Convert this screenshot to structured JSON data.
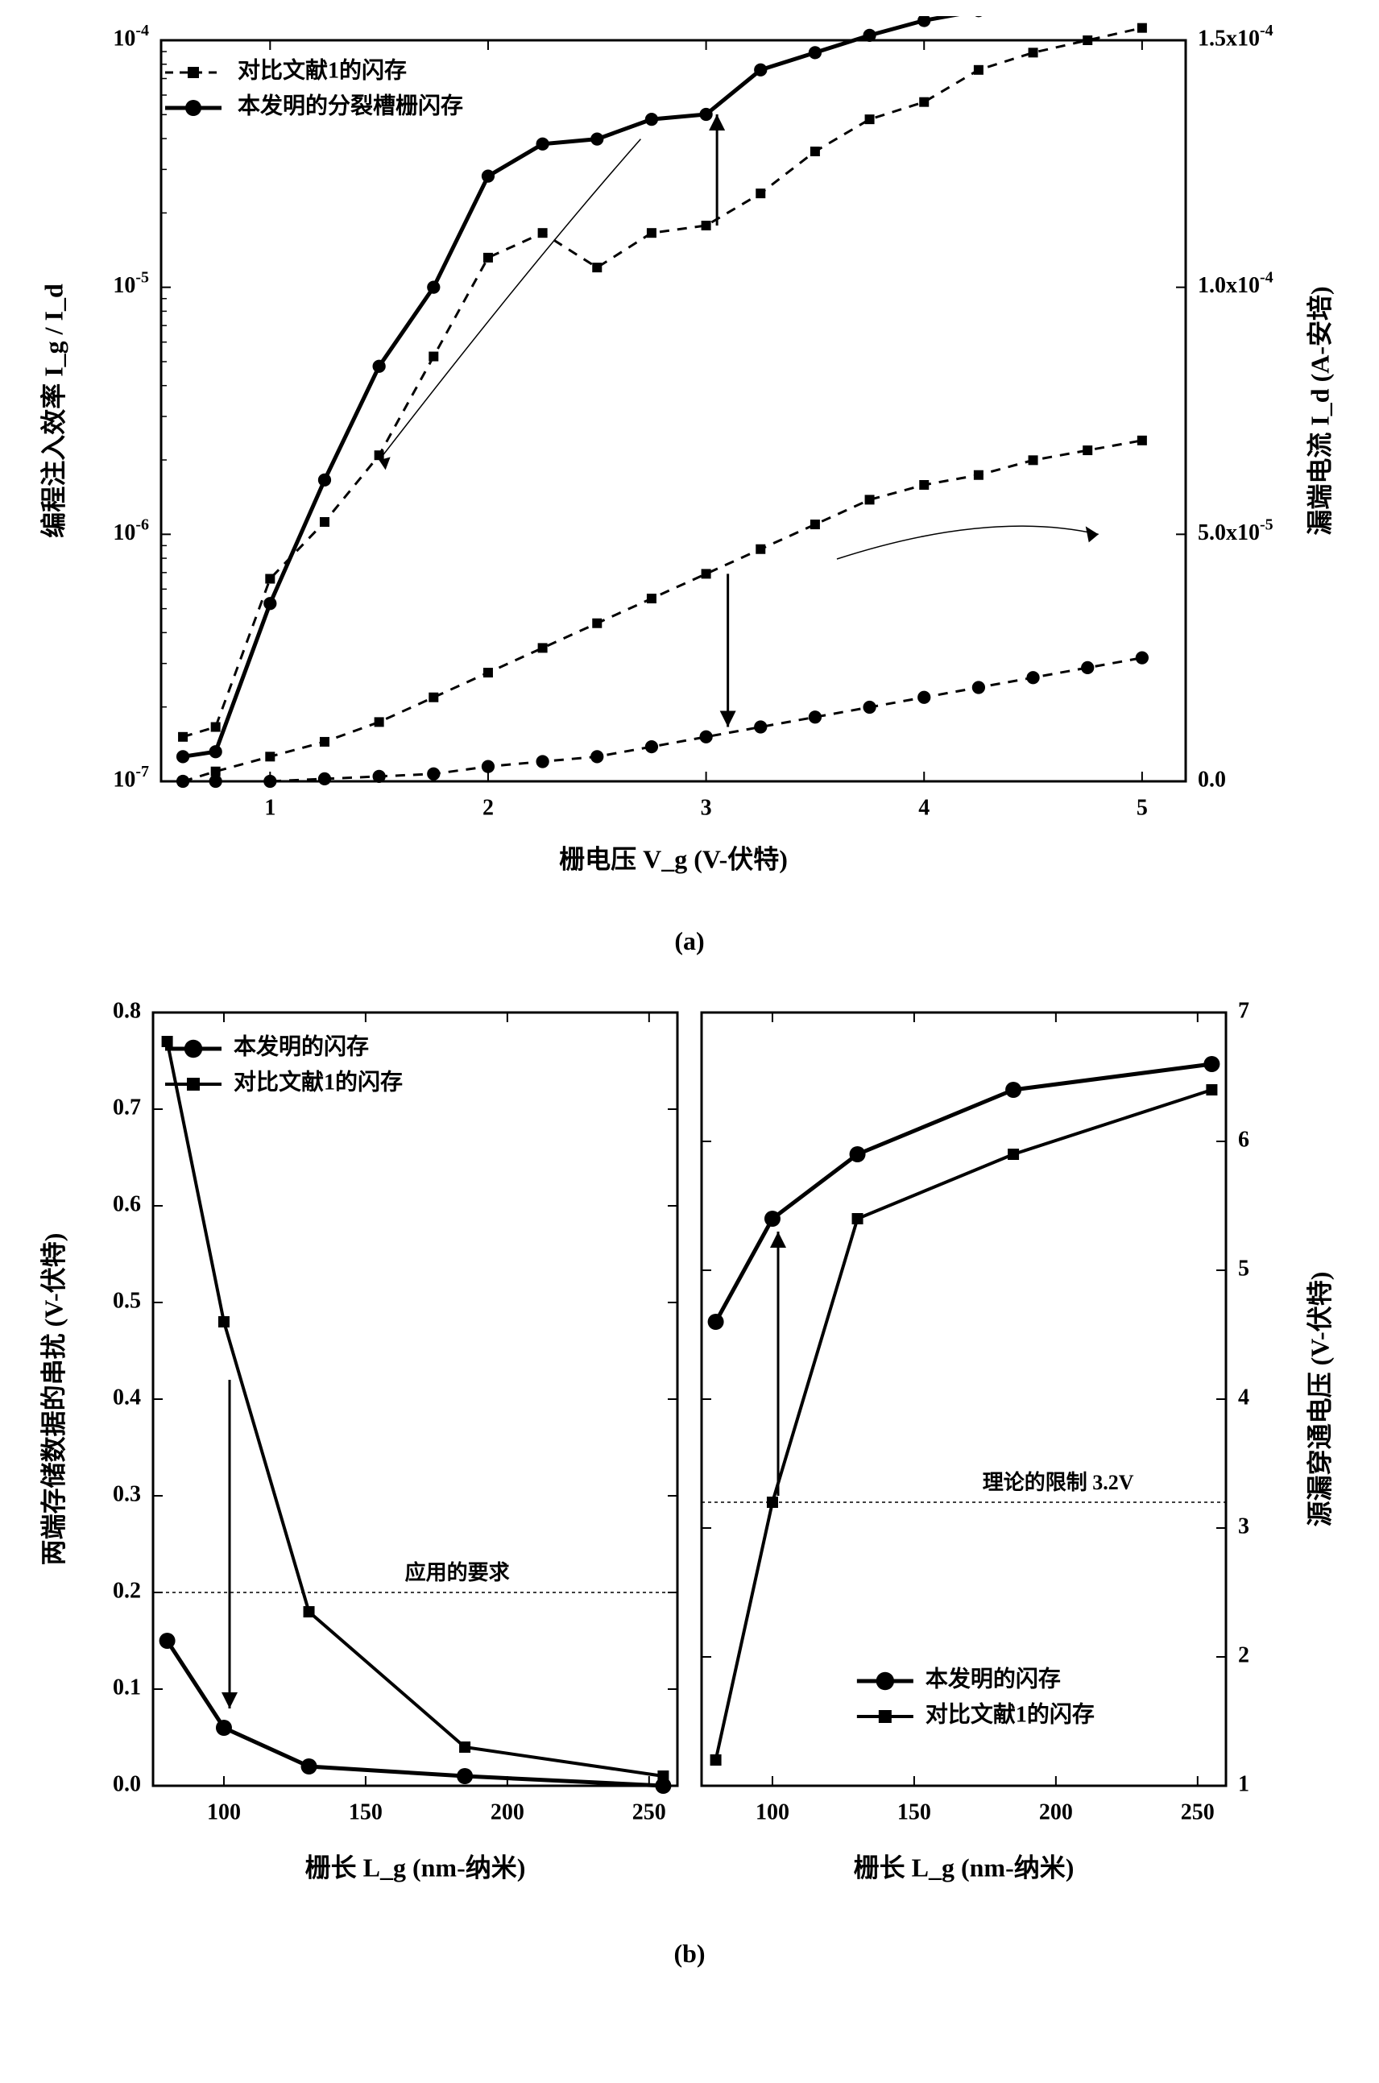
{
  "chart_a": {
    "type": "line-dual-axis",
    "xlabel": "栅电压  V_g  (V-伏特)",
    "ylabel_left": "编程注入效率  I_g / I_d",
    "ylabel_right": "漏端电流  I_d (A-安培)",
    "xlim": [
      0.5,
      5.2
    ],
    "xticks": [
      1,
      2,
      3,
      4,
      5
    ],
    "left_yscale": "log",
    "left_ylim_exp": [
      -7,
      -4
    ],
    "left_yticks_exp": [
      -7,
      -6,
      -5,
      -4
    ],
    "right_ylim": [
      0,
      0.00015
    ],
    "right_yticks": [
      0.0,
      5e-05,
      0.0001,
      0.00015
    ],
    "right_ytick_labels": [
      "0.0",
      "5.0x10^-5",
      "1.0x10^-4",
      "1.5x10^-4"
    ],
    "legend": {
      "square_label": "对比文献1的闪存",
      "circle_label": "本发明的分裂槽栅闪存"
    },
    "series_left_square": {
      "marker": "square",
      "dash": true,
      "size": 12,
      "line_width": 3,
      "x": [
        0.6,
        0.75,
        1.0,
        1.25,
        1.5,
        1.75,
        2.0,
        2.25,
        2.5,
        2.75,
        3.0,
        3.25,
        3.5,
        3.75,
        4.0,
        4.25,
        4.5,
        4.75,
        5.0
      ],
      "yexp": [
        -6.82,
        -6.78,
        -6.18,
        -5.95,
        -5.68,
        -5.28,
        -4.88,
        -4.78,
        -4.92,
        -4.78,
        -4.75,
        -4.62,
        -4.45,
        -4.32,
        -4.25,
        -4.12,
        -4.05,
        -4.0,
        -3.95
      ]
    },
    "series_left_circle": {
      "marker": "circle",
      "dash": false,
      "size": 13,
      "line_width": 5,
      "x": [
        0.6,
        0.75,
        1.0,
        1.25,
        1.5,
        1.75,
        2.0,
        2.25,
        2.5,
        2.75,
        3.0,
        3.25,
        3.5,
        3.75,
        4.0,
        4.25,
        4.5,
        4.75,
        5.0
      ],
      "yexp": [
        -6.9,
        -6.88,
        -6.28,
        -5.78,
        -5.32,
        -5.0,
        -4.55,
        -4.42,
        -4.4,
        -4.32,
        -4.3,
        -4.12,
        -4.05,
        -3.98,
        -3.92,
        -3.88,
        -3.85,
        -3.84,
        -3.83
      ]
    },
    "series_right_square": {
      "marker": "square",
      "dash": true,
      "size": 12,
      "line_width": 3,
      "x": [
        0.6,
        0.75,
        1.0,
        1.25,
        1.5,
        1.75,
        2.0,
        2.25,
        2.5,
        2.75,
        3.0,
        3.25,
        3.5,
        3.75,
        4.0,
        4.25,
        4.5,
        4.75,
        5.0
      ],
      "y": [
        0,
        2e-06,
        5e-06,
        8e-06,
        1.2e-05,
        1.7e-05,
        2.2e-05,
        2.7e-05,
        3.2e-05,
        3.7e-05,
        4.2e-05,
        4.7e-05,
        5.2e-05,
        5.7e-05,
        6e-05,
        6.2e-05,
        6.5e-05,
        6.7e-05,
        6.9e-05
      ]
    },
    "series_right_circle": {
      "marker": "circle",
      "dash": true,
      "size": 13,
      "line_width": 3,
      "x": [
        0.6,
        0.75,
        1.0,
        1.25,
        1.5,
        1.75,
        2.0,
        2.25,
        2.5,
        2.75,
        3.0,
        3.25,
        3.5,
        3.75,
        4.0,
        4.25,
        4.5,
        4.75,
        5.0
      ],
      "y": [
        0,
        0,
        0,
        5e-07,
        1e-06,
        1.5e-06,
        3e-06,
        4e-06,
        5e-06,
        7e-06,
        9e-06,
        1.1e-05,
        1.3e-05,
        1.5e-05,
        1.7e-05,
        1.9e-05,
        2.1e-05,
        2.3e-05,
        2.5e-05
      ]
    },
    "caption": "(a)",
    "colors": {
      "stroke": "#000000",
      "fill": "#000000",
      "bg": "#ffffff"
    },
    "axis_line_width": 3
  },
  "chart_b": {
    "type": "two-panel-line",
    "xlabel": "栅长 L_g (nm-纳米)",
    "xlim": [
      75,
      260
    ],
    "xticks": [
      100,
      150,
      200,
      250
    ],
    "left_panel": {
      "ylabel": "两端存储数据的串扰 (V-伏特)",
      "ylim": [
        0.0,
        0.8
      ],
      "yticks": [
        0.0,
        0.1,
        0.2,
        0.3,
        0.4,
        0.5,
        0.6,
        0.7,
        0.8
      ],
      "refline_y": 0.2,
      "refline_label": "应用的要求",
      "series_circle": {
        "marker": "circle",
        "dash": false,
        "size": 16,
        "line_width": 5,
        "x": [
          80,
          100,
          130,
          185,
          255
        ],
        "y": [
          0.15,
          0.06,
          0.02,
          0.01,
          0.0
        ]
      },
      "series_square": {
        "marker": "square",
        "dash": false,
        "size": 14,
        "line_width": 4,
        "x": [
          80,
          100,
          130,
          185,
          255
        ],
        "y": [
          0.77,
          0.48,
          0.18,
          0.04,
          0.01
        ]
      },
      "legend": {
        "circle_label": "本发明的闪存",
        "square_label": "对比文献1的闪存"
      }
    },
    "right_panel": {
      "ylabel": "源漏穿通电压 (V-伏特)",
      "ylim": [
        1,
        7
      ],
      "yticks": [
        1,
        2,
        3,
        4,
        5,
        6,
        7
      ],
      "refline_y": 3.2,
      "refline_label": "理论的限制 3.2V",
      "series_circle": {
        "marker": "circle",
        "dash": false,
        "size": 16,
        "line_width": 5,
        "x": [
          80,
          100,
          130,
          185,
          255
        ],
        "y": [
          4.6,
          5.4,
          5.9,
          6.4,
          6.6
        ]
      },
      "series_square": {
        "marker": "square",
        "dash": false,
        "size": 14,
        "line_width": 4,
        "x": [
          80,
          100,
          130,
          185,
          255
        ],
        "y": [
          1.2,
          3.2,
          5.4,
          5.9,
          6.4
        ]
      },
      "legend": {
        "circle_label": "本发明的闪存",
        "square_label": "对比文献1的闪存"
      }
    },
    "caption": "(b)",
    "colors": {
      "stroke": "#000000",
      "fill": "#000000",
      "bg": "#ffffff"
    },
    "axis_line_width": 3
  }
}
